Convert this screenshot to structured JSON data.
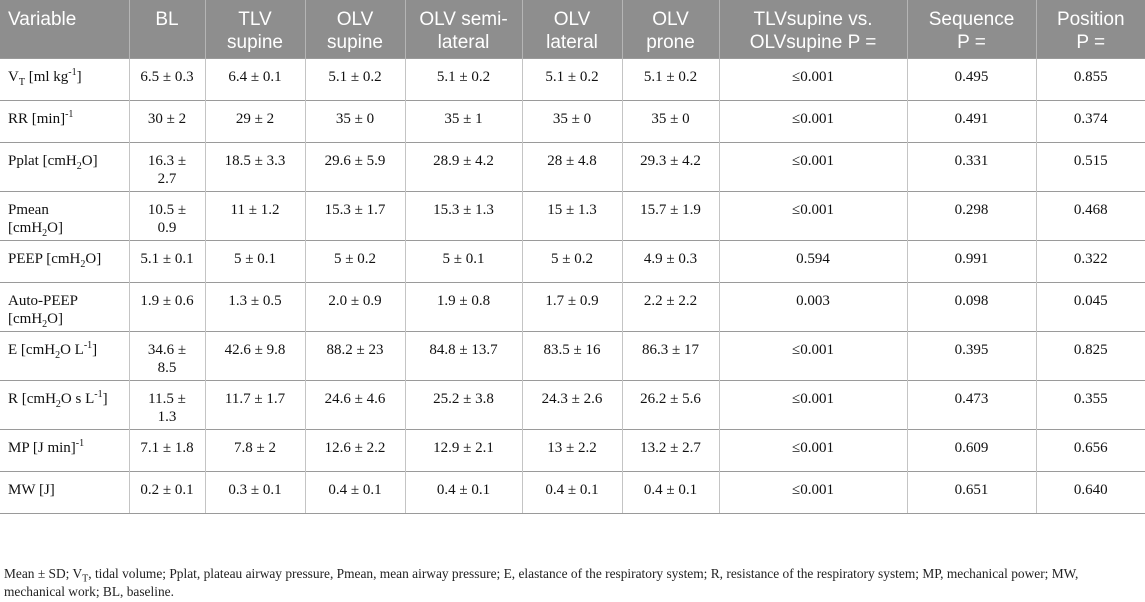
{
  "table": {
    "headers": [
      [
        "Variable"
      ],
      [
        "BL"
      ],
      [
        "TLV",
        "supine"
      ],
      [
        "OLV",
        "supine"
      ],
      [
        "OLV semi-",
        "lateral"
      ],
      [
        "OLV",
        "lateral"
      ],
      [
        "OLV",
        "prone"
      ],
      [
        "TLVsupine vs.",
        "OLVsupine P ="
      ],
      [
        "Sequence",
        "P ="
      ],
      [
        "Position",
        "P ="
      ]
    ],
    "rows": [
      {
        "variable": {
          "pre": "V",
          "sub": "T",
          "post": " [ml kg",
          "sup": "-1",
          "post2": "]"
        },
        "cells": [
          [
            "6.5 ± 0.3"
          ],
          [
            "6.4 ± 0.1"
          ],
          [
            "5.1 ± 0.2"
          ],
          [
            "5.1 ± 0.2"
          ],
          [
            "5.1 ± 0.2"
          ],
          [
            "5.1 ± 0.2"
          ],
          [
            "≤0.001"
          ],
          [
            "0.495"
          ],
          [
            "0.855"
          ]
        ]
      },
      {
        "variable": {
          "pre": "RR [min",
          "sup": "-1",
          "post": "]"
        },
        "cells": [
          [
            "30 ± 2"
          ],
          [
            "29 ± 2"
          ],
          [
            "35 ± 0"
          ],
          [
            "35 ± 1"
          ],
          [
            "35 ± 0"
          ],
          [
            "35 ± 0"
          ],
          [
            "≤0.001"
          ],
          [
            "0.491"
          ],
          [
            "0.374"
          ]
        ]
      },
      {
        "variable": {
          "pre": "Pplat [cmH",
          "sub": "2",
          "post": "O]"
        },
        "cells": [
          [
            "16.3 ±",
            "2.7"
          ],
          [
            "18.5 ± 3.3"
          ],
          [
            "29.6 ± 5.9"
          ],
          [
            "28.9 ± 4.2"
          ],
          [
            "28 ± 4.8"
          ],
          [
            "29.3 ± 4.2"
          ],
          [
            "≤0.001"
          ],
          [
            "0.331"
          ],
          [
            "0.515"
          ]
        ]
      },
      {
        "variable": {
          "line1": "Pmean",
          "pre": "[cmH",
          "sub": "2",
          "post": "O]"
        },
        "cells": [
          [
            "10.5 ±",
            "0.9"
          ],
          [
            "11 ± 1.2"
          ],
          [
            "15.3 ± 1.7"
          ],
          [
            "15.3 ± 1.3"
          ],
          [
            "15 ± 1.3"
          ],
          [
            "15.7 ± 1.9"
          ],
          [
            "≤0.001"
          ],
          [
            "0.298"
          ],
          [
            "0.468"
          ]
        ]
      },
      {
        "variable": {
          "pre": "PEEP [cmH",
          "sub": "2",
          "post": "O]"
        },
        "cells": [
          [
            "5.1 ± 0.1"
          ],
          [
            "5 ± 0.1"
          ],
          [
            "5 ± 0.2"
          ],
          [
            "5 ± 0.1"
          ],
          [
            "5 ± 0.2"
          ],
          [
            "4.9 ± 0.3"
          ],
          [
            "0.594"
          ],
          [
            "0.991"
          ],
          [
            "0.322"
          ]
        ]
      },
      {
        "variable": {
          "line1": "Auto-PEEP",
          "pre": "[cmH",
          "sub": "2",
          "post": "O]"
        },
        "cells": [
          [
            "1.9 ± 0.6"
          ],
          [
            "1.3 ± 0.5"
          ],
          [
            "2.0 ± 0.9"
          ],
          [
            "1.9 ± 0.8"
          ],
          [
            "1.7 ± 0.9"
          ],
          [
            "2.2 ± 2.2"
          ],
          [
            "0.003"
          ],
          [
            "0.098"
          ],
          [
            "0.045"
          ]
        ]
      },
      {
        "variable": {
          "pre": "E [cmH",
          "sub": "2",
          "post": "O L",
          "sup": "-1",
          "post2": "]"
        },
        "cells": [
          [
            "34.6 ±",
            "8.5"
          ],
          [
            "42.6 ± 9.8"
          ],
          [
            "88.2 ± 23"
          ],
          [
            "84.8 ± 13.7"
          ],
          [
            "83.5 ± 16"
          ],
          [
            "86.3 ± 17"
          ],
          [
            "≤0.001"
          ],
          [
            "0.395"
          ],
          [
            "0.825"
          ]
        ]
      },
      {
        "variable": {
          "pre": "R [cmH",
          "sub": "2",
          "post": "O s L",
          "sup": "-1",
          "post2": "]"
        },
        "cells": [
          [
            "11.5 ±",
            "1.3"
          ],
          [
            "11.7 ± 1.7"
          ],
          [
            "24.6 ± 4.6"
          ],
          [
            "25.2 ± 3.8"
          ],
          [
            "24.3 ± 2.6"
          ],
          [
            "26.2 ± 5.6"
          ],
          [
            "≤0.001"
          ],
          [
            "0.473"
          ],
          [
            "0.355"
          ]
        ]
      },
      {
        "variable": {
          "pre": "MP [J min",
          "sup": "-1",
          "post": "]"
        },
        "cells": [
          [
            "7.1 ± 1.8"
          ],
          [
            "7.8 ± 2"
          ],
          [
            "12.6 ± 2.2"
          ],
          [
            "12.9 ± 2.1"
          ],
          [
            "13 ± 2.2"
          ],
          [
            "13.2 ± 2.7"
          ],
          [
            "≤0.001"
          ],
          [
            "0.609"
          ],
          [
            "0.656"
          ]
        ]
      },
      {
        "variable": {
          "pre": "MW [J]"
        },
        "cells": [
          [
            "0.2 ± 0.1"
          ],
          [
            "0.3 ± 0.1"
          ],
          [
            "0.4 ± 0.1"
          ],
          [
            "0.4 ± 0.1"
          ],
          [
            "0.4 ± 0.1"
          ],
          [
            "0.4 ± 0.1"
          ],
          [
            "≤0.001"
          ],
          [
            "0.651"
          ],
          [
            "0.640"
          ]
        ]
      }
    ]
  },
  "footnote": {
    "pre": "Mean ± SD; V",
    "sub": "T",
    "post": ", tidal volume; Pplat, plateau airway pressure, Pmean, mean airway pressure; E, elastance of the respiratory system; R, resistance of the respiratory system; MP, mechanical power; MW, mechanical work; BL, baseline."
  }
}
